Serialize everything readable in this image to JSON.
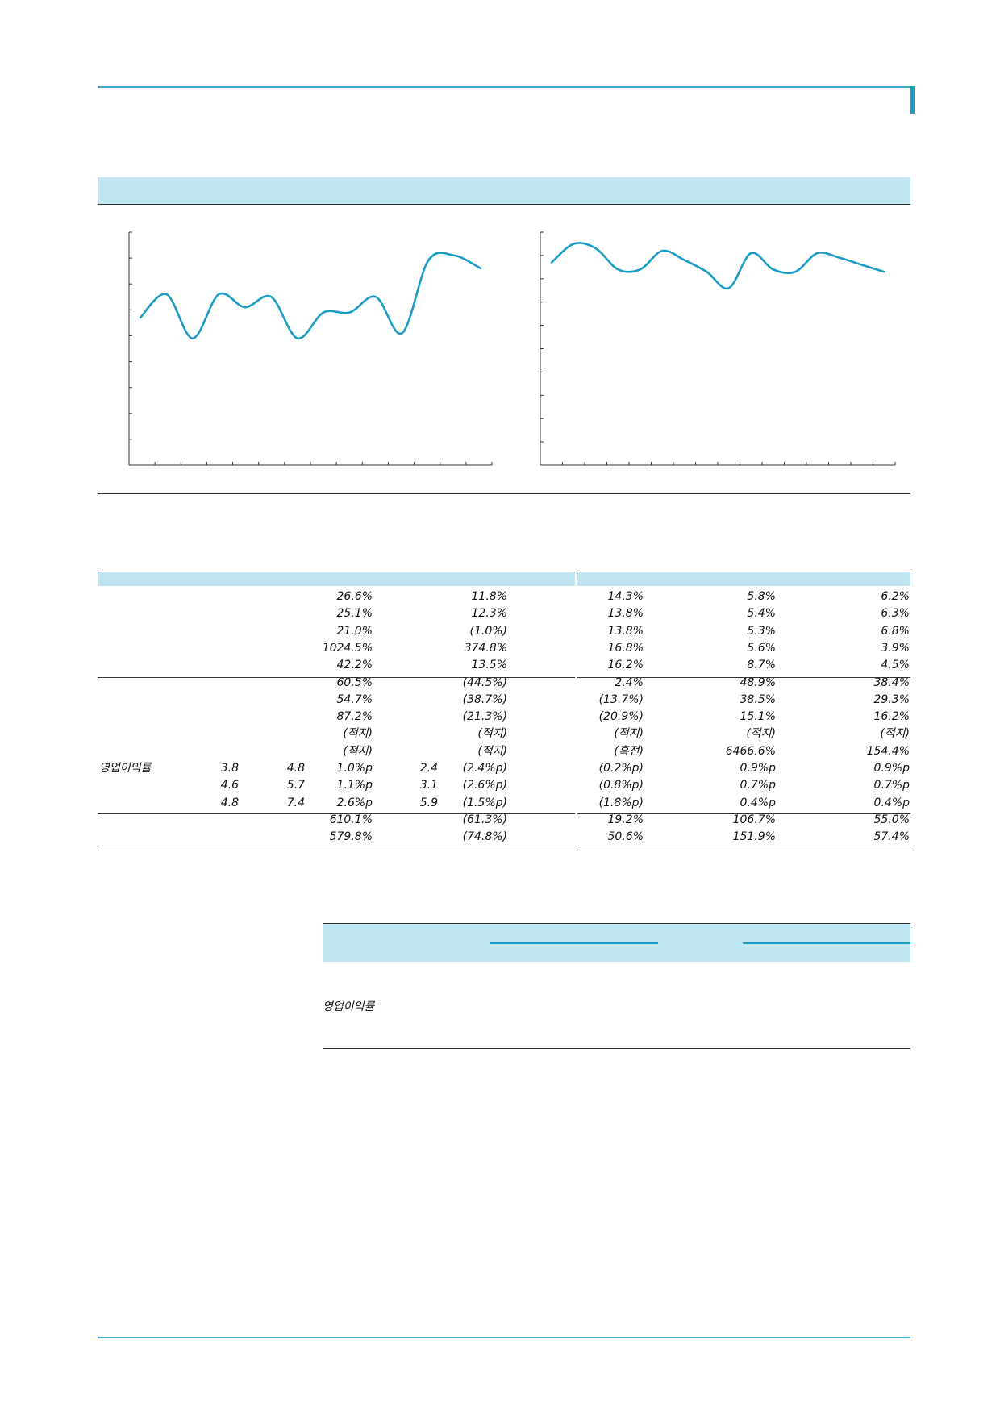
{
  "colors": {
    "accent": "#1a9cc5",
    "header_fill": "#c0e7f1",
    "line": "#1a9cc5"
  },
  "chart_data": [
    {
      "type": "line",
      "title": "",
      "xlabel": "",
      "ylabel": "",
      "x": [
        1,
        2,
        3,
        4,
        5,
        6,
        7,
        8,
        9,
        10,
        11,
        12,
        13,
        14
      ],
      "series": [
        {
          "values": [
            5.7,
            6.6,
            4.9,
            6.6,
            6.1,
            6.5,
            4.9,
            5.9,
            5.9,
            6.5,
            5.1,
            7.9,
            8.1,
            7.6
          ]
        }
      ],
      "ylim": [
        0,
        9
      ],
      "ticks_x": 14,
      "ticks_y": 9,
      "grid": false
    },
    {
      "type": "line",
      "title": "",
      "xlabel": "",
      "ylabel": "",
      "x": [
        1,
        2,
        3,
        4,
        5,
        6,
        7,
        8,
        9,
        10,
        11,
        12,
        13,
        14,
        15,
        16
      ],
      "series": [
        {
          "values": [
            8.7,
            9.5,
            9.3,
            8.4,
            8.4,
            9.2,
            8.8,
            8.3,
            7.6,
            9.1,
            8.4,
            8.3,
            9.1,
            8.9,
            8.6,
            8.3
          ]
        }
      ],
      "ylim": [
        0,
        10
      ],
      "ticks_x": 16,
      "ticks_y": 10,
      "grid": false
    }
  ],
  "table": {
    "rows": [
      {
        "label": "",
        "a": "",
        "b": "",
        "c": "26.6%",
        "d": "",
        "e": "11.8%",
        "f": "14.3%",
        "g": "5.8%",
        "h": "6.2%"
      },
      {
        "label": "",
        "a": "",
        "b": "",
        "c": "25.1%",
        "d": "",
        "e": "12.3%",
        "f": "13.8%",
        "g": "5.4%",
        "h": "6.3%"
      },
      {
        "label": "",
        "a": "",
        "b": "",
        "c": "21.0%",
        "d": "",
        "e": "(1.0%)",
        "f": "13.8%",
        "g": "5.3%",
        "h": "6.8%"
      },
      {
        "label": "",
        "a": "",
        "b": "",
        "c": "1024.5%",
        "d": "",
        "e": "374.8%",
        "f": "16.8%",
        "g": "5.6%",
        "h": "3.9%"
      },
      {
        "label": "",
        "a": "",
        "b": "",
        "c": "42.2%",
        "d": "",
        "e": "13.5%",
        "f": "16.2%",
        "g": "8.7%",
        "h": "4.5%"
      },
      {
        "label": "",
        "a": "",
        "b": "",
        "c": "60.5%",
        "d": "",
        "e": "(44.5%)",
        "f": "2.4%",
        "g": "48.9%",
        "h": "38.4%"
      },
      {
        "label": "",
        "a": "",
        "b": "",
        "c": "54.7%",
        "d": "",
        "e": "(38.7%)",
        "f": "(13.7%)",
        "g": "38.5%",
        "h": "29.3%"
      },
      {
        "label": "",
        "a": "",
        "b": "",
        "c": "87.2%",
        "d": "",
        "e": "(21.3%)",
        "f": "(20.9%)",
        "g": "15.1%",
        "h": "16.2%"
      },
      {
        "label": "",
        "a": "",
        "b": "",
        "c": "(적지)",
        "d": "",
        "e": "(적지)",
        "f": "(적지)",
        "g": "(적지)",
        "h": "(적지)"
      },
      {
        "label": "",
        "a": "",
        "b": "",
        "c": "(적지)",
        "d": "",
        "e": "(적지)",
        "f": "(흑전)",
        "g": "6466.6%",
        "h": "154.4%"
      },
      {
        "label": "영업이익률",
        "a": "3.8",
        "b": "4.8",
        "c": "1.0%p",
        "d": "2.4",
        "e": "(2.4%p)",
        "f": "(0.2%p)",
        "g": "0.9%p",
        "h": "0.9%p"
      },
      {
        "label": "",
        "a": "4.6",
        "b": "5.7",
        "c": "1.1%p",
        "d": "3.1",
        "e": "(2.6%p)",
        "f": "(0.8%p)",
        "g": "0.7%p",
        "h": "0.7%p"
      },
      {
        "label": "",
        "a": "4.8",
        "b": "7.4",
        "c": "2.6%p",
        "d": "5.9",
        "e": "(1.5%p)",
        "f": "(1.8%p)",
        "g": "0.4%p",
        "h": "0.4%p"
      },
      {
        "label": "",
        "a": "",
        "b": "",
        "c": "610.1%",
        "d": "",
        "e": "(61.3%)",
        "f": "19.2%",
        "g": "106.7%",
        "h": "55.0%"
      },
      {
        "label": "",
        "a": "",
        "b": "",
        "c": "579.8%",
        "d": "",
        "e": "(74.8%)",
        "f": "50.6%",
        "g": "151.9%",
        "h": "57.4%"
      }
    ]
  },
  "table2": {
    "label": "영업이익률"
  }
}
